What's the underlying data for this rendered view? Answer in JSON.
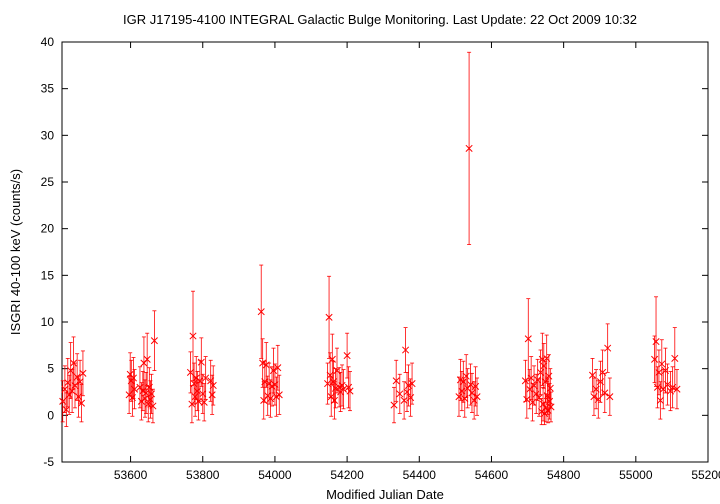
{
  "chart_data": {
    "type": "scatter",
    "title": "IGR J17195-4100   INTEGRAL Galactic Bulge Monitoring.  Last Update: 22 Oct 2009 10:32",
    "xlabel": "Modified Julian Date",
    "ylabel": "ISGRI 40-100 keV (counts/s)",
    "xlim": [
      53410,
      55200
    ],
    "ylim": [
      -5,
      40
    ],
    "xticks": [
      53600,
      53800,
      54000,
      54200,
      54400,
      54600,
      54800,
      55000,
      55200
    ],
    "yticks": [
      -5,
      0,
      5,
      10,
      15,
      20,
      25,
      30,
      35,
      40
    ],
    "grid": false,
    "marker": "x",
    "color": "#ff0000",
    "points": [
      {
        "x": 53412,
        "y": 1.5,
        "err": 2.2
      },
      {
        "x": 53418,
        "y": 2.8,
        "err": 2.5
      },
      {
        "x": 53422,
        "y": 0.6,
        "err": 1.8
      },
      {
        "x": 53426,
        "y": 3.5,
        "err": 2.6
      },
      {
        "x": 53430,
        "y": 2.2,
        "err": 2.1
      },
      {
        "x": 53434,
        "y": 4.8,
        "err": 3.0
      },
      {
        "x": 53438,
        "y": 2.6,
        "err": 2.3
      },
      {
        "x": 53442,
        "y": 5.6,
        "err": 2.8
      },
      {
        "x": 53446,
        "y": 3.2,
        "err": 2.4
      },
      {
        "x": 53452,
        "y": 4.1,
        "err": 2.5
      },
      {
        "x": 53456,
        "y": 2.0,
        "err": 2.2
      },
      {
        "x": 53460,
        "y": 3.6,
        "err": 2.3
      },
      {
        "x": 53464,
        "y": 1.3,
        "err": 2.0
      },
      {
        "x": 53468,
        "y": 4.5,
        "err": 2.4
      },
      {
        "x": 53596,
        "y": 2.2,
        "err": 2.0
      },
      {
        "x": 53599,
        "y": 4.4,
        "err": 2.3
      },
      {
        "x": 53602,
        "y": 3.7,
        "err": 2.2
      },
      {
        "x": 53605,
        "y": 1.9,
        "err": 2.0
      },
      {
        "x": 53608,
        "y": 4.0,
        "err": 2.2
      },
      {
        "x": 53611,
        "y": 2.8,
        "err": 2.1
      },
      {
        "x": 53626,
        "y": 3.0,
        "err": 2.2
      },
      {
        "x": 53630,
        "y": 1.5,
        "err": 2.0
      },
      {
        "x": 53634,
        "y": 2.6,
        "err": 2.1
      },
      {
        "x": 53637,
        "y": 5.6,
        "err": 2.8
      },
      {
        "x": 53640,
        "y": 1.8,
        "err": 2.0
      },
      {
        "x": 53643,
        "y": 2.4,
        "err": 2.2
      },
      {
        "x": 53646,
        "y": 6.0,
        "err": 2.8
      },
      {
        "x": 53649,
        "y": 1.2,
        "err": 1.9
      },
      {
        "x": 53652,
        "y": 3.0,
        "err": 2.1
      },
      {
        "x": 53655,
        "y": 1.7,
        "err": 2.0
      },
      {
        "x": 53658,
        "y": 2.3,
        "err": 2.1
      },
      {
        "x": 53662,
        "y": 1.0,
        "err": 1.8
      },
      {
        "x": 53666,
        "y": 8.0,
        "err": 3.2
      },
      {
        "x": 53766,
        "y": 4.6,
        "err": 2.2
      },
      {
        "x": 53770,
        "y": 1.2,
        "err": 2.0
      },
      {
        "x": 53773,
        "y": 8.5,
        "err": 4.8
      },
      {
        "x": 53776,
        "y": 3.4,
        "err": 2.2
      },
      {
        "x": 53779,
        "y": 2.0,
        "err": 2.1
      },
      {
        "x": 53782,
        "y": 4.0,
        "err": 2.3
      },
      {
        "x": 53785,
        "y": 2.6,
        "err": 2.1
      },
      {
        "x": 53788,
        "y": 1.5,
        "err": 2.0
      },
      {
        "x": 53792,
        "y": 3.7,
        "err": 2.2
      },
      {
        "x": 53796,
        "y": 5.7,
        "err": 2.6
      },
      {
        "x": 53800,
        "y": 2.3,
        "err": 2.1
      },
      {
        "x": 53804,
        "y": 1.4,
        "err": 2.0
      },
      {
        "x": 53808,
        "y": 4.0,
        "err": 2.3
      },
      {
        "x": 53822,
        "y": 3.7,
        "err": 2.2
      },
      {
        "x": 53826,
        "y": 2.2,
        "err": 2.1
      },
      {
        "x": 53829,
        "y": 3.2,
        "err": 2.1
      },
      {
        "x": 53962,
        "y": 11.1,
        "err": 5.0
      },
      {
        "x": 53966,
        "y": 5.6,
        "err": 2.6
      },
      {
        "x": 53969,
        "y": 1.6,
        "err": 2.0
      },
      {
        "x": 53972,
        "y": 3.6,
        "err": 2.2
      },
      {
        "x": 53976,
        "y": 5.4,
        "err": 2.4
      },
      {
        "x": 53980,
        "y": 2.1,
        "err": 2.1
      },
      {
        "x": 53984,
        "y": 3.4,
        "err": 2.2
      },
      {
        "x": 53988,
        "y": 1.8,
        "err": 2.0
      },
      {
        "x": 53992,
        "y": 3.1,
        "err": 2.1
      },
      {
        "x": 53996,
        "y": 4.8,
        "err": 2.4
      },
      {
        "x": 54000,
        "y": 3.3,
        "err": 2.2
      },
      {
        "x": 54004,
        "y": 2.0,
        "err": 2.1
      },
      {
        "x": 54008,
        "y": 5.1,
        "err": 2.4
      },
      {
        "x": 54012,
        "y": 2.2,
        "err": 2.1
      },
      {
        "x": 54146,
        "y": 3.4,
        "err": 2.2
      },
      {
        "x": 54150,
        "y": 10.5,
        "err": 4.4
      },
      {
        "x": 54153,
        "y": 4.3,
        "err": 2.4
      },
      {
        "x": 54156,
        "y": 2.0,
        "err": 2.1
      },
      {
        "x": 54159,
        "y": 6.0,
        "err": 2.7
      },
      {
        "x": 54162,
        "y": 3.6,
        "err": 2.2
      },
      {
        "x": 54165,
        "y": 1.6,
        "err": 2.0
      },
      {
        "x": 54168,
        "y": 2.9,
        "err": 2.1
      },
      {
        "x": 54172,
        "y": 4.8,
        "err": 2.4
      },
      {
        "x": 54178,
        "y": 3.0,
        "err": 2.1
      },
      {
        "x": 54182,
        "y": 2.5,
        "err": 2.1
      },
      {
        "x": 54186,
        "y": 3.2,
        "err": 2.2
      },
      {
        "x": 54190,
        "y": 2.8,
        "err": 2.1
      },
      {
        "x": 54200,
        "y": 6.4,
        "err": 2.4
      },
      {
        "x": 54204,
        "y": 3.0,
        "err": 2.2
      },
      {
        "x": 54208,
        "y": 2.6,
        "err": 2.1
      },
      {
        "x": 54330,
        "y": 1.1,
        "err": 1.9
      },
      {
        "x": 54336,
        "y": 3.7,
        "err": 2.2
      },
      {
        "x": 54346,
        "y": 2.3,
        "err": 2.1
      },
      {
        "x": 54358,
        "y": 1.6,
        "err": 2.0
      },
      {
        "x": 54362,
        "y": 7.0,
        "err": 2.4
      },
      {
        "x": 54366,
        "y": 2.5,
        "err": 2.1
      },
      {
        "x": 54370,
        "y": 3.2,
        "err": 2.2
      },
      {
        "x": 54376,
        "y": 1.9,
        "err": 2.0
      },
      {
        "x": 54380,
        "y": 3.4,
        "err": 2.2
      },
      {
        "x": 54510,
        "y": 2.0,
        "err": 2.1
      },
      {
        "x": 54514,
        "y": 3.8,
        "err": 2.2
      },
      {
        "x": 54518,
        "y": 2.6,
        "err": 2.1
      },
      {
        "x": 54522,
        "y": 3.6,
        "err": 2.2
      },
      {
        "x": 54526,
        "y": 1.8,
        "err": 2.0
      },
      {
        "x": 54530,
        "y": 4.2,
        "err": 2.3
      },
      {
        "x": 54534,
        "y": 2.9,
        "err": 2.1
      },
      {
        "x": 54538,
        "y": 28.6,
        "err": 10.3
      },
      {
        "x": 54542,
        "y": 3.3,
        "err": 2.2
      },
      {
        "x": 54546,
        "y": 2.4,
        "err": 2.1
      },
      {
        "x": 54552,
        "y": 1.6,
        "err": 2.0
      },
      {
        "x": 54556,
        "y": 3.1,
        "err": 2.1
      },
      {
        "x": 54560,
        "y": 2.0,
        "err": 2.0
      },
      {
        "x": 54694,
        "y": 3.7,
        "err": 2.2
      },
      {
        "x": 54698,
        "y": 1.7,
        "err": 2.0
      },
      {
        "x": 54702,
        "y": 8.2,
        "err": 4.3
      },
      {
        "x": 54706,
        "y": 2.8,
        "err": 2.1
      },
      {
        "x": 54710,
        "y": 4.0,
        "err": 2.3
      },
      {
        "x": 54714,
        "y": 1.4,
        "err": 2.0
      },
      {
        "x": 54718,
        "y": 3.2,
        "err": 2.1
      },
      {
        "x": 54724,
        "y": 2.3,
        "err": 2.1
      },
      {
        "x": 54728,
        "y": 3.8,
        "err": 2.2
      },
      {
        "x": 54732,
        "y": 1.9,
        "err": 2.0
      },
      {
        "x": 54736,
        "y": 4.6,
        "err": 2.4
      },
      {
        "x": 54739,
        "y": 0.4,
        "err": 1.4
      },
      {
        "x": 54741,
        "y": 6.0,
        "err": 2.8
      },
      {
        "x": 54743,
        "y": 1.2,
        "err": 1.8
      },
      {
        "x": 54745,
        "y": 5.3,
        "err": 2.4
      },
      {
        "x": 54747,
        "y": 0.2,
        "err": 1.2
      },
      {
        "x": 54749,
        "y": 3.6,
        "err": 2.2
      },
      {
        "x": 54751,
        "y": 0.8,
        "err": 1.5
      },
      {
        "x": 54753,
        "y": 6.1,
        "err": 2.5
      },
      {
        "x": 54755,
        "y": 2.1,
        "err": 2.0
      },
      {
        "x": 54757,
        "y": 0.5,
        "err": 1.3
      },
      {
        "x": 54759,
        "y": 4.2,
        "err": 2.3
      },
      {
        "x": 54761,
        "y": 1.5,
        "err": 1.9
      },
      {
        "x": 54763,
        "y": 2.9,
        "err": 2.1
      },
      {
        "x": 54765,
        "y": 0.9,
        "err": 1.6
      },
      {
        "x": 54880,
        "y": 4.3,
        "err": 1.8
      },
      {
        "x": 54884,
        "y": 2.0,
        "err": 2.0
      },
      {
        "x": 54890,
        "y": 2.8,
        "err": 2.1
      },
      {
        "x": 54896,
        "y": 1.7,
        "err": 2.0
      },
      {
        "x": 54902,
        "y": 3.6,
        "err": 2.2
      },
      {
        "x": 54908,
        "y": 4.6,
        "err": 2.4
      },
      {
        "x": 54914,
        "y": 2.4,
        "err": 2.1
      },
      {
        "x": 54922,
        "y": 7.2,
        "err": 2.6
      },
      {
        "x": 54928,
        "y": 2.0,
        "err": 2.0
      },
      {
        "x": 55052,
        "y": 6.0,
        "err": 2.5
      },
      {
        "x": 55056,
        "y": 7.9,
        "err": 4.8
      },
      {
        "x": 55060,
        "y": 3.0,
        "err": 2.2
      },
      {
        "x": 55064,
        "y": 4.6,
        "err": 2.4
      },
      {
        "x": 55068,
        "y": 1.6,
        "err": 2.0
      },
      {
        "x": 55072,
        "y": 5.5,
        "err": 2.6
      },
      {
        "x": 55076,
        "y": 2.8,
        "err": 2.1
      },
      {
        "x": 55082,
        "y": 4.8,
        "err": 2.4
      },
      {
        "x": 55088,
        "y": 3.3,
        "err": 2.2
      },
      {
        "x": 55096,
        "y": 2.6,
        "err": 2.1
      },
      {
        "x": 55102,
        "y": 3.0,
        "err": 2.2
      },
      {
        "x": 55108,
        "y": 6.1,
        "err": 3.3
      },
      {
        "x": 55114,
        "y": 2.8,
        "err": 2.1
      }
    ]
  }
}
